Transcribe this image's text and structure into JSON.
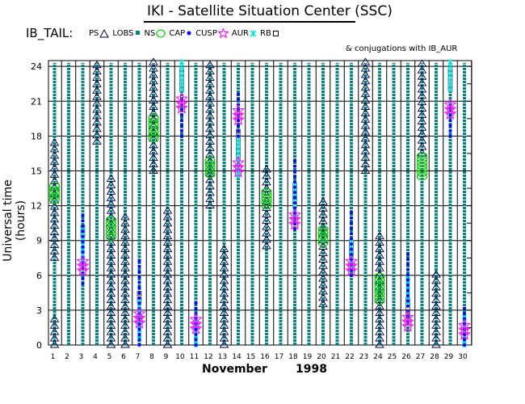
{
  "title": "IKI - Satellite Situation Center (SSC)",
  "subtitle": "IB_TAIL:",
  "legend": [
    {
      "label": "PS",
      "icon": "triangle-icon",
      "color": "#00004a"
    },
    {
      "label": "LOBS",
      "icon": "square-icon",
      "color": "#008080"
    },
    {
      "label": "NS",
      "icon": "circle-icon",
      "color": "#00cc00"
    },
    {
      "label": "CAP",
      "icon": "dot-icon",
      "color": "#0000ff"
    },
    {
      "label": "CUSP",
      "icon": "star-icon",
      "color": "#ff00ff"
    },
    {
      "label": "AUR",
      "icon": "cross-icon",
      "color": "#00e0e0"
    },
    {
      "label": "RB",
      "icon": "open-square-icon",
      "color": "#000000"
    }
  ],
  "note": "& conjugations with IB_AUR",
  "chart_data": {
    "type": "scatter",
    "title": "IKI - Satellite Situation Center (SSC)",
    "xlabel_month": "November",
    "xlabel_year": "1998",
    "ylabel": "Universal time (hours)",
    "ylim": [
      0,
      24.5
    ],
    "yticks": [
      0,
      3,
      6,
      9,
      12,
      15,
      18,
      21,
      24
    ],
    "days": [
      1,
      2,
      3,
      4,
      5,
      6,
      7,
      8,
      9,
      10,
      11,
      12,
      13,
      14,
      15,
      16,
      17,
      18,
      19,
      20,
      21,
      22,
      23,
      24,
      25,
      26,
      27,
      28,
      29,
      30
    ],
    "grid": "horizontal every 3 hours, vertical every day",
    "lobs_columns": [
      1,
      2,
      3,
      4,
      5,
      6,
      7,
      8,
      9,
      10,
      11,
      12,
      13,
      14,
      15,
      16,
      17,
      18,
      19,
      20,
      21,
      22,
      23,
      24,
      25,
      26,
      27,
      28,
      29,
      30
    ],
    "ps_ranges": [
      {
        "day": 1,
        "from": 7.5,
        "to": 17.5
      },
      {
        "day": 1,
        "from": 0,
        "to": 2.5
      },
      {
        "day": 4,
        "from": 17.5,
        "to": 24.5
      },
      {
        "day": 5,
        "from": 0,
        "to": 14.5
      },
      {
        "day": 6,
        "from": 0,
        "to": 11.5
      },
      {
        "day": 8,
        "from": 15,
        "to": 24.5
      },
      {
        "day": 9,
        "from": 0,
        "to": 12
      },
      {
        "day": 12,
        "from": 12,
        "to": 24.5
      },
      {
        "day": 13,
        "from": 0,
        "to": 8.5
      },
      {
        "day": 16,
        "from": 8.5,
        "to": 15.5
      },
      {
        "day": 20,
        "from": 3.5,
        "to": 12.5
      },
      {
        "day": 23,
        "from": 15,
        "to": 24.5
      },
      {
        "day": 24,
        "from": 0,
        "to": 9.5
      },
      {
        "day": 27,
        "from": 16.5,
        "to": 24.5
      },
      {
        "day": 28,
        "from": 0,
        "to": 6.5
      }
    ],
    "ns_ranges": [
      {
        "day": 1,
        "from": 12.5,
        "to": 13.8
      },
      {
        "day": 5,
        "from": 9.3,
        "to": 11
      },
      {
        "day": 8,
        "from": 17.8,
        "to": 19.8
      },
      {
        "day": 12,
        "from": 14.7,
        "to": 16
      },
      {
        "day": 16,
        "from": 12,
        "to": 13.3
      },
      {
        "day": 20,
        "from": 8.8,
        "to": 10
      },
      {
        "day": 24,
        "from": 3.8,
        "to": 6
      },
      {
        "day": 27,
        "from": 14.5,
        "to": 16.5
      }
    ],
    "cap_ranges": [
      {
        "day": 3,
        "from": 5.3,
        "to": 11.3
      },
      {
        "day": 7,
        "from": 0,
        "to": 7.5
      },
      {
        "day": 10,
        "from": 18,
        "to": 21.5
      },
      {
        "day": 11,
        "from": 0,
        "to": 3.8
      },
      {
        "day": 14,
        "from": 18,
        "to": 22
      },
      {
        "day": 18,
        "from": 10,
        "to": 16
      },
      {
        "day": 22,
        "from": 6,
        "to": 11.5
      },
      {
        "day": 26,
        "from": 2,
        "to": 8
      },
      {
        "day": 29,
        "from": 18,
        "to": 21
      },
      {
        "day": 30,
        "from": 0,
        "to": 3.5
      }
    ],
    "cusp_points": [
      {
        "day": 3,
        "h": 6.8
      },
      {
        "day": 7,
        "h": 2.3
      },
      {
        "day": 10,
        "h": 20.8
      },
      {
        "day": 11,
        "h": 1.8
      },
      {
        "day": 14,
        "h": 19.8
      },
      {
        "day": 14,
        "h": 15.3
      },
      {
        "day": 18,
        "h": 10.8
      },
      {
        "day": 22,
        "h": 6.8
      },
      {
        "day": 26,
        "h": 2
      },
      {
        "day": 29,
        "h": 20.3
      },
      {
        "day": 30,
        "h": 1.3
      }
    ],
    "aur_ranges": [
      {
        "day": 3,
        "from": 7,
        "to": 10.5
      },
      {
        "day": 7,
        "from": 0.5,
        "to": 4
      },
      {
        "day": 10,
        "from": 22,
        "to": 24.5
      },
      {
        "day": 11,
        "from": 0,
        "to": 2
      },
      {
        "day": 14,
        "from": 14.5,
        "to": 18
      },
      {
        "day": 18,
        "from": 11,
        "to": 14
      },
      {
        "day": 22,
        "from": 6.5,
        "to": 9
      },
      {
        "day": 26,
        "from": 3.5,
        "to": 6
      },
      {
        "day": 29,
        "from": 22,
        "to": 24.5
      },
      {
        "day": 30,
        "from": 0,
        "to": 2.5
      }
    ],
    "rb_ranges": [
      {
        "day": 3,
        "from": 9.5,
        "to": 10.5
      },
      {
        "day": 7,
        "from": 3.8,
        "to": 4.8
      },
      {
        "day": 10,
        "from": 22,
        "to": 24
      },
      {
        "day": 14,
        "from": 16,
        "to": 18.5
      },
      {
        "day": 18,
        "from": 12,
        "to": 14
      },
      {
        "day": 22,
        "from": 7.5,
        "to": 9.2
      },
      {
        "day": 26,
        "from": 2.5,
        "to": 4
      },
      {
        "day": 29,
        "from": 22,
        "to": 24
      }
    ]
  }
}
